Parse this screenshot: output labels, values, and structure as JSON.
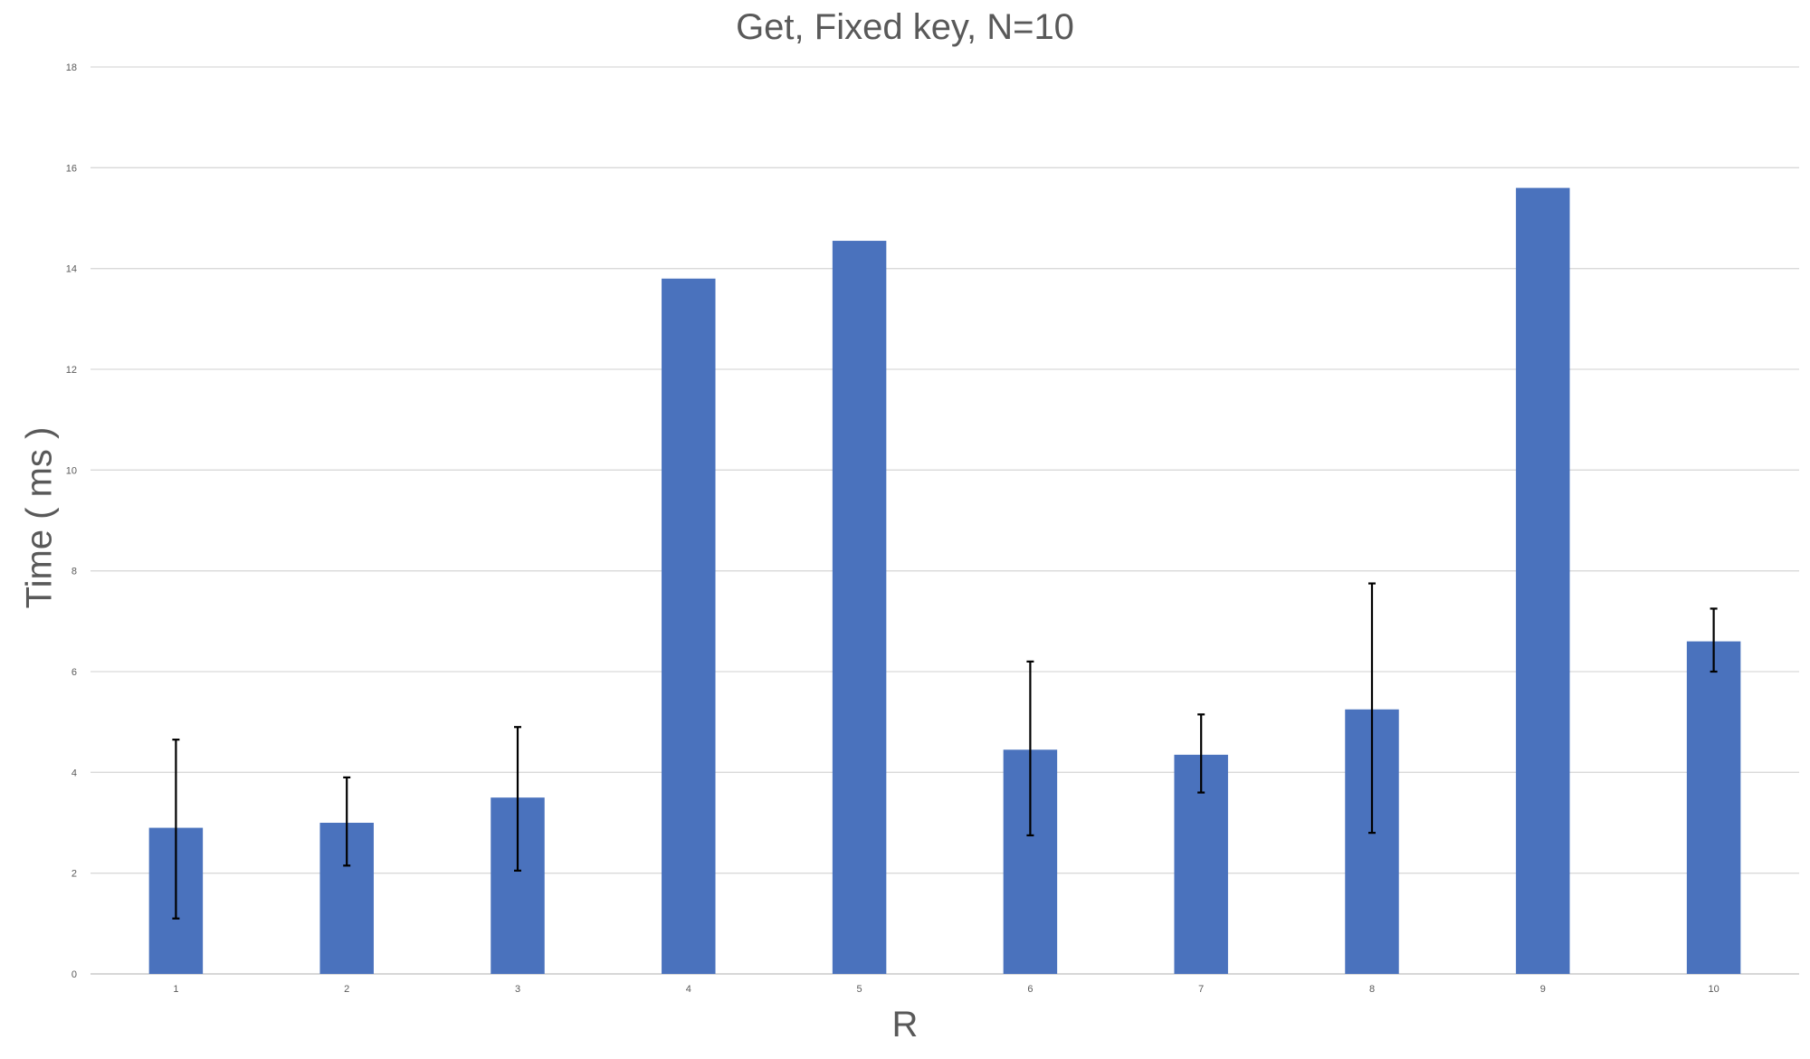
{
  "chart_data": {
    "type": "bar",
    "title": "Get, Fixed key, N=10",
    "xlabel": "R",
    "ylabel": "Time ( ms )",
    "categories": [
      "1",
      "2",
      "3",
      "4",
      "5",
      "6",
      "7",
      "8",
      "9",
      "10"
    ],
    "values": [
      2.9,
      3.0,
      3.5,
      13.8,
      14.55,
      4.45,
      4.35,
      5.25,
      15.6,
      6.6
    ],
    "error_low": [
      1.1,
      2.15,
      2.05,
      null,
      null,
      2.75,
      3.6,
      2.8,
      null,
      6.0
    ],
    "error_high": [
      4.65,
      3.9,
      4.9,
      null,
      null,
      6.2,
      5.15,
      7.75,
      null,
      7.25
    ],
    "ylim": [
      0,
      18
    ],
    "yticks": [
      0,
      2,
      4,
      6,
      8,
      10,
      12,
      14,
      16,
      18
    ],
    "grid": true,
    "colors": {
      "bar": "#4a72bd",
      "grid": "#d9d9d9",
      "axis": "#bfbfbf",
      "error": "#000000"
    }
  }
}
